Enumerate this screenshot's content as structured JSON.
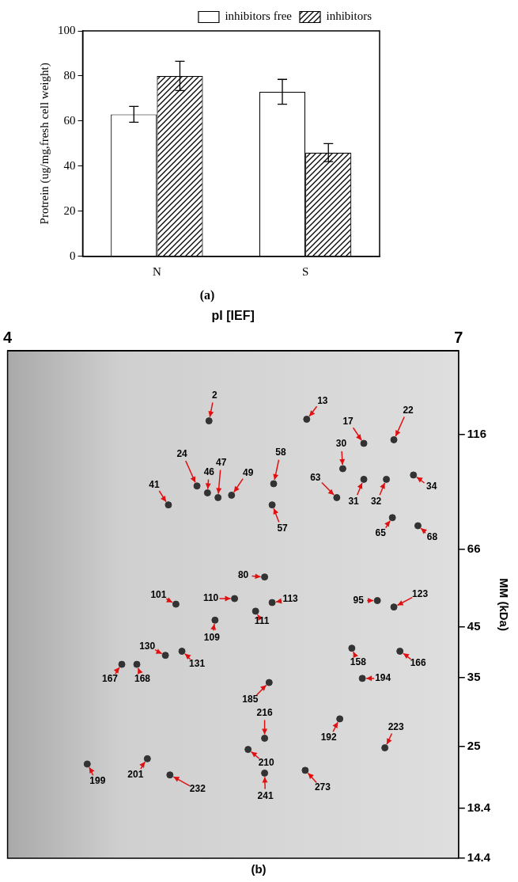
{
  "chart_data": [
    {
      "type": "bar",
      "title": "(a)",
      "categories": [
        "N",
        "S"
      ],
      "series": [
        {
          "name": "inhibitors free",
          "color": "#ffffff",
          "values": [
            63,
            73
          ],
          "errors": [
            3.5,
            5.5
          ]
        },
        {
          "name": "inhibitors",
          "color": "#000000",
          "values": [
            80,
            46
          ],
          "errors": [
            6.5,
            4
          ]
        }
      ],
      "y_label": "Protrein (ug/mg,fresh cell weight)",
      "ylim": [
        0,
        100
      ],
      "yticks": [
        0,
        20,
        40,
        60,
        80,
        100
      ],
      "grid": false,
      "legend": "upper right"
    },
    {
      "type": "scatter",
      "title": "(b)",
      "x_label": "pI [IEF]",
      "y_label": "MM (kDa)",
      "xlim": [
        4,
        7
      ],
      "xticks": [
        4,
        7
      ],
      "ylim": [
        14.4,
        175
      ],
      "yticks": [
        116,
        66,
        45,
        35,
        25,
        18.4,
        14.4
      ],
      "log": "y",
      "grid": false,
      "color": "#333333",
      "points": [
        {
          "label": "2",
          "x": 5.34,
          "y": 124
        },
        {
          "label": "13",
          "x": 5.99,
          "y": 125
        },
        {
          "label": "17",
          "x": 6.37,
          "y": 111
        },
        {
          "label": "22",
          "x": 6.57,
          "y": 113
        },
        {
          "label": "24",
          "x": 5.26,
          "y": 90
        },
        {
          "label": "46",
          "x": 5.33,
          "y": 87
        },
        {
          "label": "47",
          "x": 5.4,
          "y": 85
        },
        {
          "label": "49",
          "x": 5.49,
          "y": 86
        },
        {
          "label": "58",
          "x": 5.77,
          "y": 91
        },
        {
          "label": "57",
          "x": 5.76,
          "y": 82
        },
        {
          "label": "30",
          "x": 6.23,
          "y": 98
        },
        {
          "label": "63",
          "x": 6.19,
          "y": 85
        },
        {
          "label": "31",
          "x": 6.37,
          "y": 93
        },
        {
          "label": "32",
          "x": 6.52,
          "y": 93
        },
        {
          "label": "34",
          "x": 6.7,
          "y": 95
        },
        {
          "label": "41",
          "x": 5.07,
          "y": 82
        },
        {
          "label": "68",
          "x": 6.73,
          "y": 74
        },
        {
          "label": "65",
          "x": 6.56,
          "y": 77
        },
        {
          "label": "80",
          "x": 5.71,
          "y": 57.5
        },
        {
          "label": "101",
          "x": 5.12,
          "y": 50.3
        },
        {
          "label": "110",
          "x": 5.51,
          "y": 51.7
        },
        {
          "label": "113",
          "x": 5.76,
          "y": 50.7
        },
        {
          "label": "111",
          "x": 5.65,
          "y": 48.6
        },
        {
          "label": "95",
          "x": 6.46,
          "y": 51.2
        },
        {
          "label": "123",
          "x": 6.57,
          "y": 49.6
        },
        {
          "label": "109",
          "x": 5.38,
          "y": 46.5
        },
        {
          "label": "130",
          "x": 5.05,
          "y": 39.1
        },
        {
          "label": "131",
          "x": 5.16,
          "y": 39.9
        },
        {
          "label": "158",
          "x": 6.29,
          "y": 40.5
        },
        {
          "label": "166",
          "x": 6.61,
          "y": 39.9
        },
        {
          "label": "167",
          "x": 4.76,
          "y": 37.4
        },
        {
          "label": "168",
          "x": 4.86,
          "y": 37.4
        },
        {
          "label": "185",
          "x": 5.74,
          "y": 34.2
        },
        {
          "label": "194",
          "x": 6.36,
          "y": 34.9
        },
        {
          "label": "216",
          "x": 5.71,
          "y": 26.0
        },
        {
          "label": "192",
          "x": 6.21,
          "y": 28.6
        },
        {
          "label": "223",
          "x": 6.51,
          "y": 24.8
        },
        {
          "label": "210",
          "x": 5.6,
          "y": 24.6
        },
        {
          "label": "201",
          "x": 4.93,
          "y": 23.5
        },
        {
          "label": "199",
          "x": 4.53,
          "y": 22.9
        },
        {
          "label": "232",
          "x": 5.08,
          "y": 21.7
        },
        {
          "label": "241",
          "x": 5.71,
          "y": 21.9
        },
        {
          "label": "273",
          "x": 5.98,
          "y": 22.2
        }
      ]
    }
  ]
}
